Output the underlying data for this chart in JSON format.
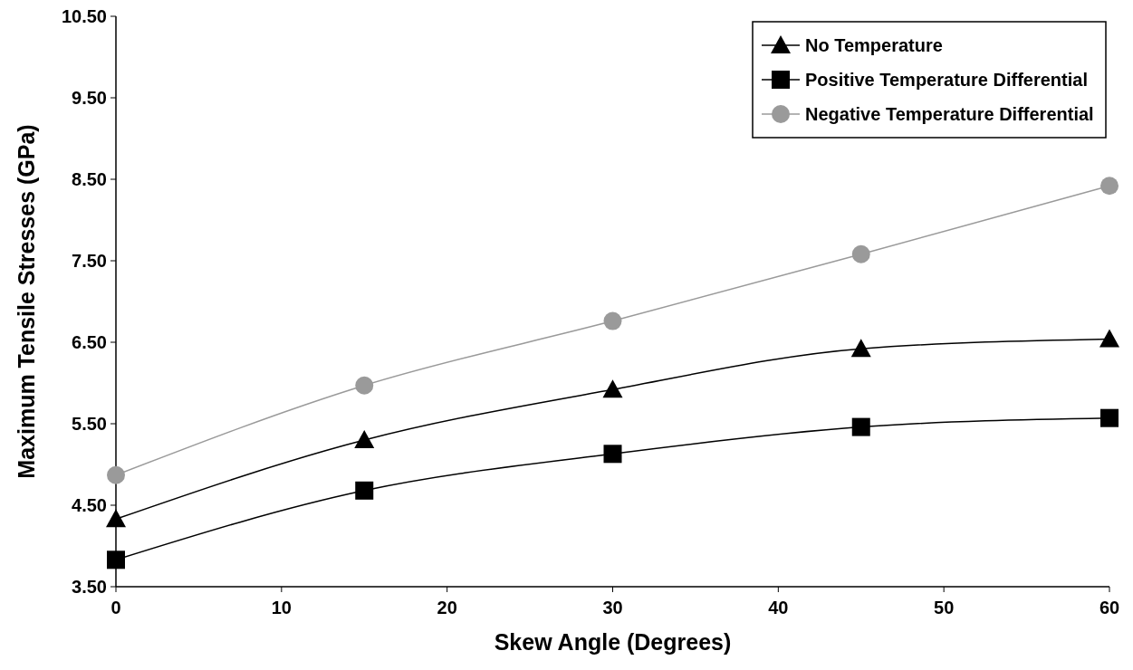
{
  "chart_data": {
    "type": "line",
    "xlabel": "Skew Angle (Degrees)",
    "ylabel": "Maximum Tensile Stresses (GPa)",
    "x": [
      0,
      15,
      30,
      45,
      60
    ],
    "series": [
      {
        "name": "No Temperature",
        "color": "#000000",
        "marker": "triangle",
        "values": [
          4.33,
          5.3,
          5.92,
          6.42,
          6.54
        ]
      },
      {
        "name": "Positive Temperature Differential",
        "color": "#000000",
        "marker": "square",
        "values": [
          3.83,
          4.68,
          5.13,
          5.46,
          5.57
        ]
      },
      {
        "name": "Negative Temperature Differential",
        "color": "#9a9a9a",
        "marker": "circle",
        "values": [
          4.87,
          5.97,
          6.76,
          7.58,
          8.42
        ]
      }
    ],
    "xlim": [
      0,
      60
    ],
    "xticks": [
      0,
      10,
      20,
      30,
      40,
      50,
      60
    ],
    "ylim": [
      3.5,
      10.5
    ],
    "yticks": [
      {
        "value": 3.5,
        "label": "3.50"
      },
      {
        "value": 4.5,
        "label": "4.50"
      },
      {
        "value": 5.5,
        "label": "5.50"
      },
      {
        "value": 6.5,
        "label": "6.50"
      },
      {
        "value": 7.5,
        "label": "7.50"
      },
      {
        "value": 8.5,
        "label": "8.50"
      },
      {
        "value": 9.5,
        "label": "9.50"
      },
      {
        "value": 10.5,
        "label": "10.50"
      }
    ],
    "grid": false,
    "legend": "top right"
  }
}
